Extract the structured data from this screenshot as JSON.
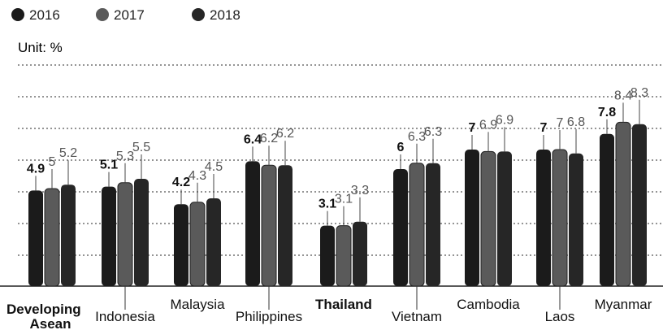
{
  "chart_data": {
    "type": "bar",
    "unit_label": "Unit: %",
    "legend_position": "top-left",
    "grid": true,
    "ylim": [
      0,
      9
    ],
    "series": [
      {
        "name": "2016",
        "color": "#1b1b1b",
        "values": [
          4.9,
          5.1,
          4.2,
          6.4,
          3.1,
          6.0,
          7.0,
          7.0,
          7.8
        ]
      },
      {
        "name": "2017",
        "color": "#5a5a5a",
        "values": [
          5.0,
          5.3,
          4.3,
          6.2,
          3.1,
          6.3,
          6.9,
          7.0,
          8.4
        ]
      },
      {
        "name": "2018",
        "color": "#262626",
        "values": [
          5.2,
          5.5,
          4.5,
          6.2,
          3.3,
          6.3,
          6.9,
          6.8,
          8.3
        ]
      }
    ],
    "categories": [
      {
        "line1": "Developing",
        "line2": "Asean",
        "bold": true
      },
      {
        "line1": "Indonesia",
        "line2": "",
        "bold": false
      },
      {
        "line1": "Malaysia",
        "line2": "",
        "bold": false
      },
      {
        "line1": "Philippines",
        "line2": "",
        "bold": false
      },
      {
        "line1": "Thailand",
        "line2": "",
        "bold": true
      },
      {
        "line1": "Vietnam",
        "line2": "",
        "bold": false
      },
      {
        "line1": "Cambodia",
        "line2": "",
        "bold": false
      },
      {
        "line1": "Laos",
        "line2": "",
        "bold": false
      },
      {
        "line1": "Myanmar",
        "line2": "",
        "bold": false
      }
    ]
  }
}
